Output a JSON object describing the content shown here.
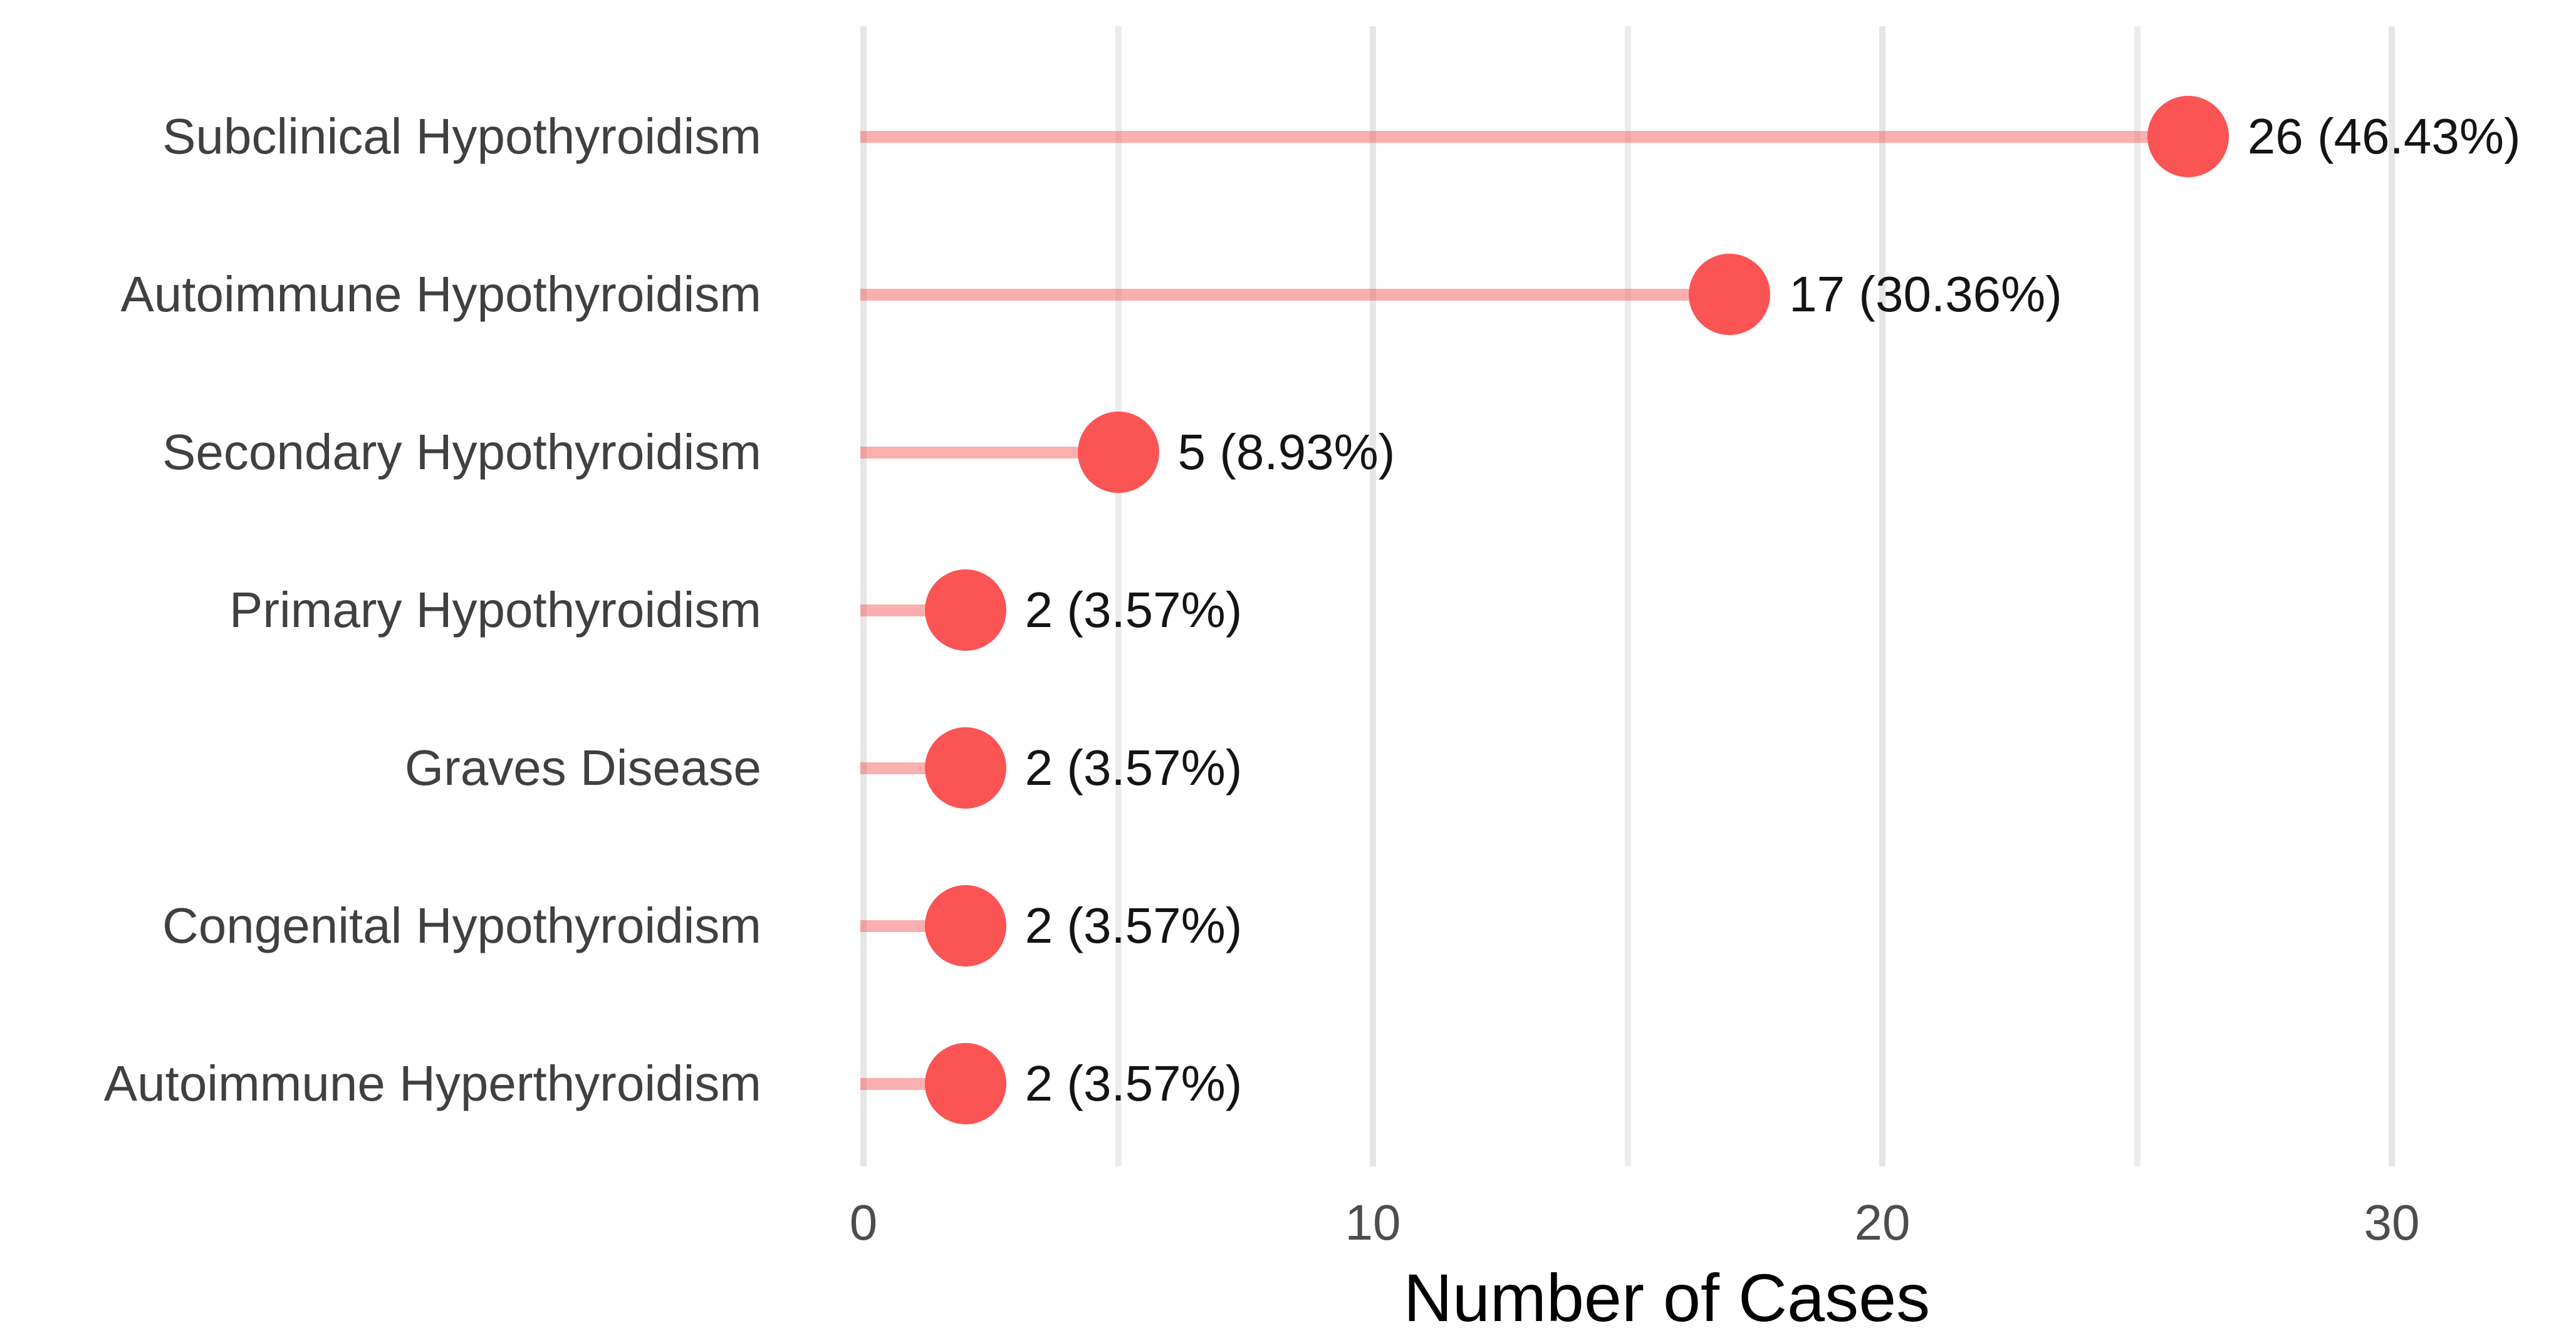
{
  "chart_data": {
    "type": "bar",
    "style": "lollipop",
    "orientation": "horizontal",
    "title": "",
    "xlabel": "Number of Cases",
    "ylabel": "",
    "categories": [
      "Subclinical Hypothyroidism",
      "Autoimmune Hypothyroidism",
      "Secondary Hypothyroidism",
      "Primary Hypothyroidism",
      "Graves Disease",
      "Congenital Hypothyroidism",
      "Autoimmune Hyperthyroidism"
    ],
    "values": [
      26,
      17,
      5,
      2,
      2,
      2,
      2
    ],
    "percents": [
      46.43,
      30.36,
      8.93,
      3.57,
      3.57,
      3.57,
      3.57
    ],
    "point_labels": [
      "26 (46.43%)",
      "17 (30.36%)",
      "5 (8.93%)",
      "2 (3.57%)",
      "2 (3.57%)",
      "2 (3.57%)",
      "2 (3.57%)"
    ],
    "xlim": [
      -0.5,
      32.5
    ],
    "xticks": [
      0,
      10,
      20,
      30
    ],
    "xticks_minor": [
      5,
      15,
      25
    ],
    "grid": true,
    "legend": "none",
    "colors": {
      "point": "#fb5454",
      "stem": "#ffadad",
      "grid_major": "#e6e6e6",
      "grid_minor": "#ececec",
      "category_label": "#404040",
      "value_label": "#141414",
      "tick_label": "#4d4d4d",
      "axis_title": "#000000",
      "background": "#ffffff"
    }
  }
}
